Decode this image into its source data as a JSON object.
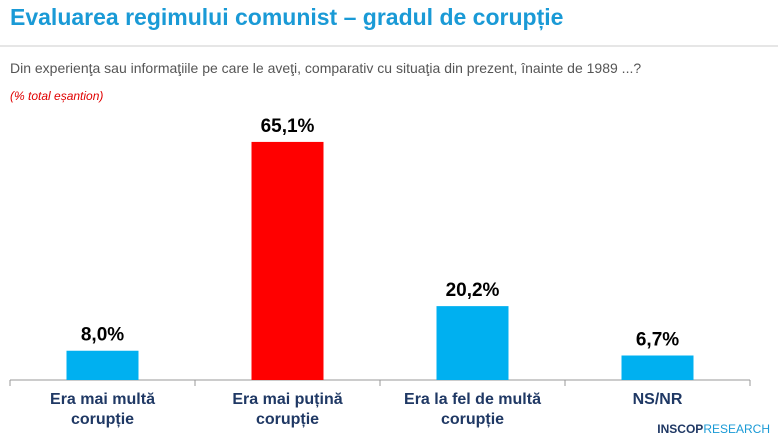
{
  "chart_data": {
    "type": "bar",
    "title": "Evaluarea regimului comunist – gradul de corupție",
    "subtitle": "Din experienţa sau informaţiile pe care le aveţi, comparativ cu situaţia din prezent, înainte de 1989 ...?",
    "note": "(% total eșantion)",
    "categories": [
      "Era mai multă corupție",
      "Era mai puțină corupție",
      "Era la fel de multă corupție",
      "NS/NR"
    ],
    "values": [
      8.0,
      65.1,
      20.2,
      6.7
    ],
    "value_labels": [
      "8,0%",
      "65,1%",
      "20,2%",
      "6,7%"
    ],
    "colors": [
      "#00b0f0",
      "#ff0000",
      "#00b0f0",
      "#00b0f0"
    ],
    "ylim": [
      0,
      70
    ],
    "logo": {
      "name": "INSCOP",
      "suffix": "RESEARCH"
    }
  }
}
